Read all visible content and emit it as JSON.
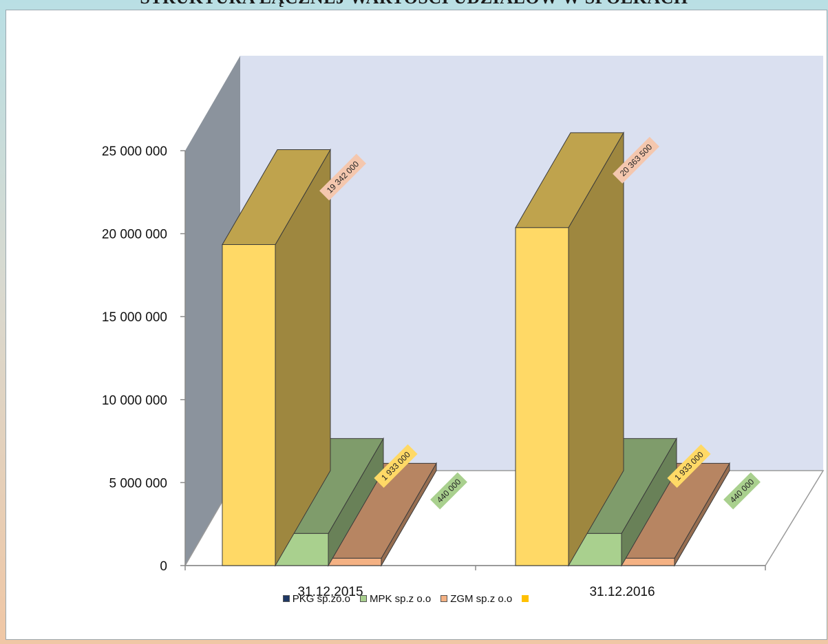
{
  "page": {
    "title": "STRUKTURA ŁĄCZNEJ WARTOŚCI UDZIAŁÓW W SPÓŁKACH"
  },
  "chart_data": {
    "type": "bar",
    "categories": [
      "31.12.2015",
      "31.12.2016"
    ],
    "series": [
      {
        "name": "PKG sp.zo.o",
        "values": [
          19342000,
          20363500
        ],
        "color": "#ffd966",
        "label_bg": "#f4c7ae"
      },
      {
        "name": "MPK sp.z o.o",
        "values": [
          1933000,
          1933000
        ],
        "color": "#a9d08e",
        "label_bg": "#ffd966"
      },
      {
        "name": "ZGM sp.z o.o",
        "values": [
          440000,
          440000
        ],
        "color": "#f4b183",
        "label_bg": "#a9d08e"
      }
    ],
    "data_labels": [
      [
        "19 342 000",
        "20 363 500"
      ],
      [
        "1 933 000",
        "1 933 000"
      ],
      [
        "440 000",
        "440 000"
      ]
    ],
    "legend": [
      {
        "label": "PKG sp.zo.o",
        "color": "#1f3864"
      },
      {
        "label": "MPK sp.z o.o",
        "color": "#a9d08e"
      },
      {
        "label": "ZGM sp.z o.o",
        "color": "#f4b183"
      },
      {
        "label": "",
        "color": "#ffc000"
      }
    ],
    "yticks": [
      "0",
      "5 000 000",
      "10 000 000",
      "15 000 000",
      "20 000 000",
      "25 000 000"
    ],
    "ylim": [
      0,
      25000000
    ],
    "grid": false,
    "legend_position": "bottom",
    "walls": {
      "back": "#dae0f0",
      "side": "#8b939d"
    }
  }
}
